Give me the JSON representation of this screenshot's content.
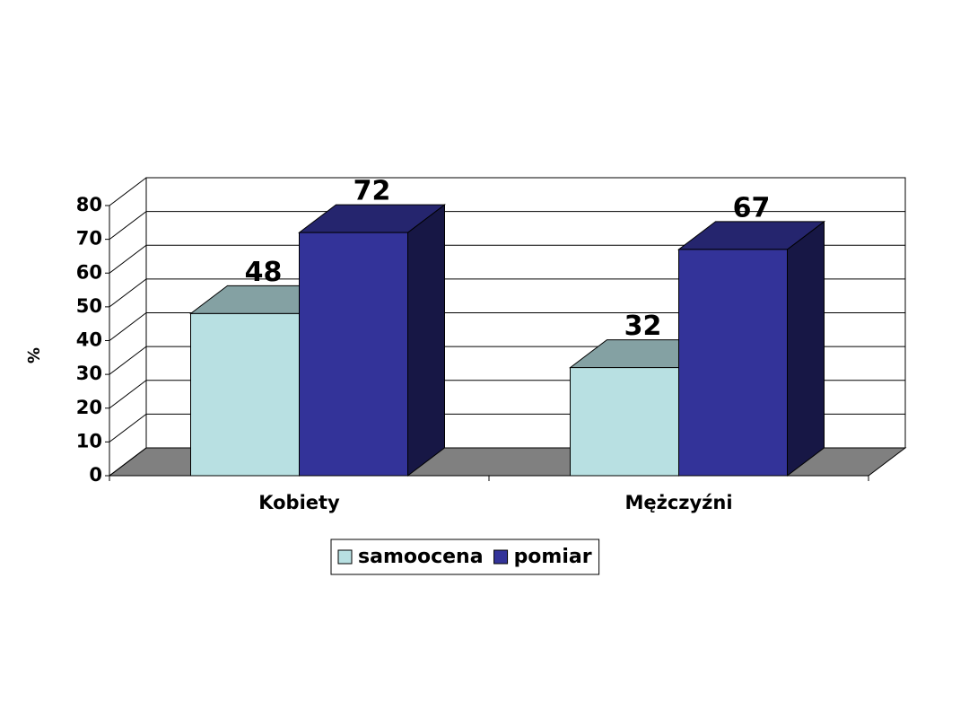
{
  "chart_data": {
    "type": "bar3d",
    "y_label": "%",
    "categories": [
      "Kobiety",
      "Mężczyźni"
    ],
    "series": [
      {
        "name": "samoocena",
        "color": "#b8e0e2",
        "values": [
          48,
          32
        ]
      },
      {
        "name": "pomiar",
        "color": "#333399",
        "values": [
          72,
          67
        ]
      }
    ],
    "ylim": [
      0,
      80
    ],
    "yticks": [
      0,
      10,
      20,
      30,
      40,
      50,
      60,
      70,
      80
    ],
    "grid": true,
    "legend": "bottom"
  }
}
